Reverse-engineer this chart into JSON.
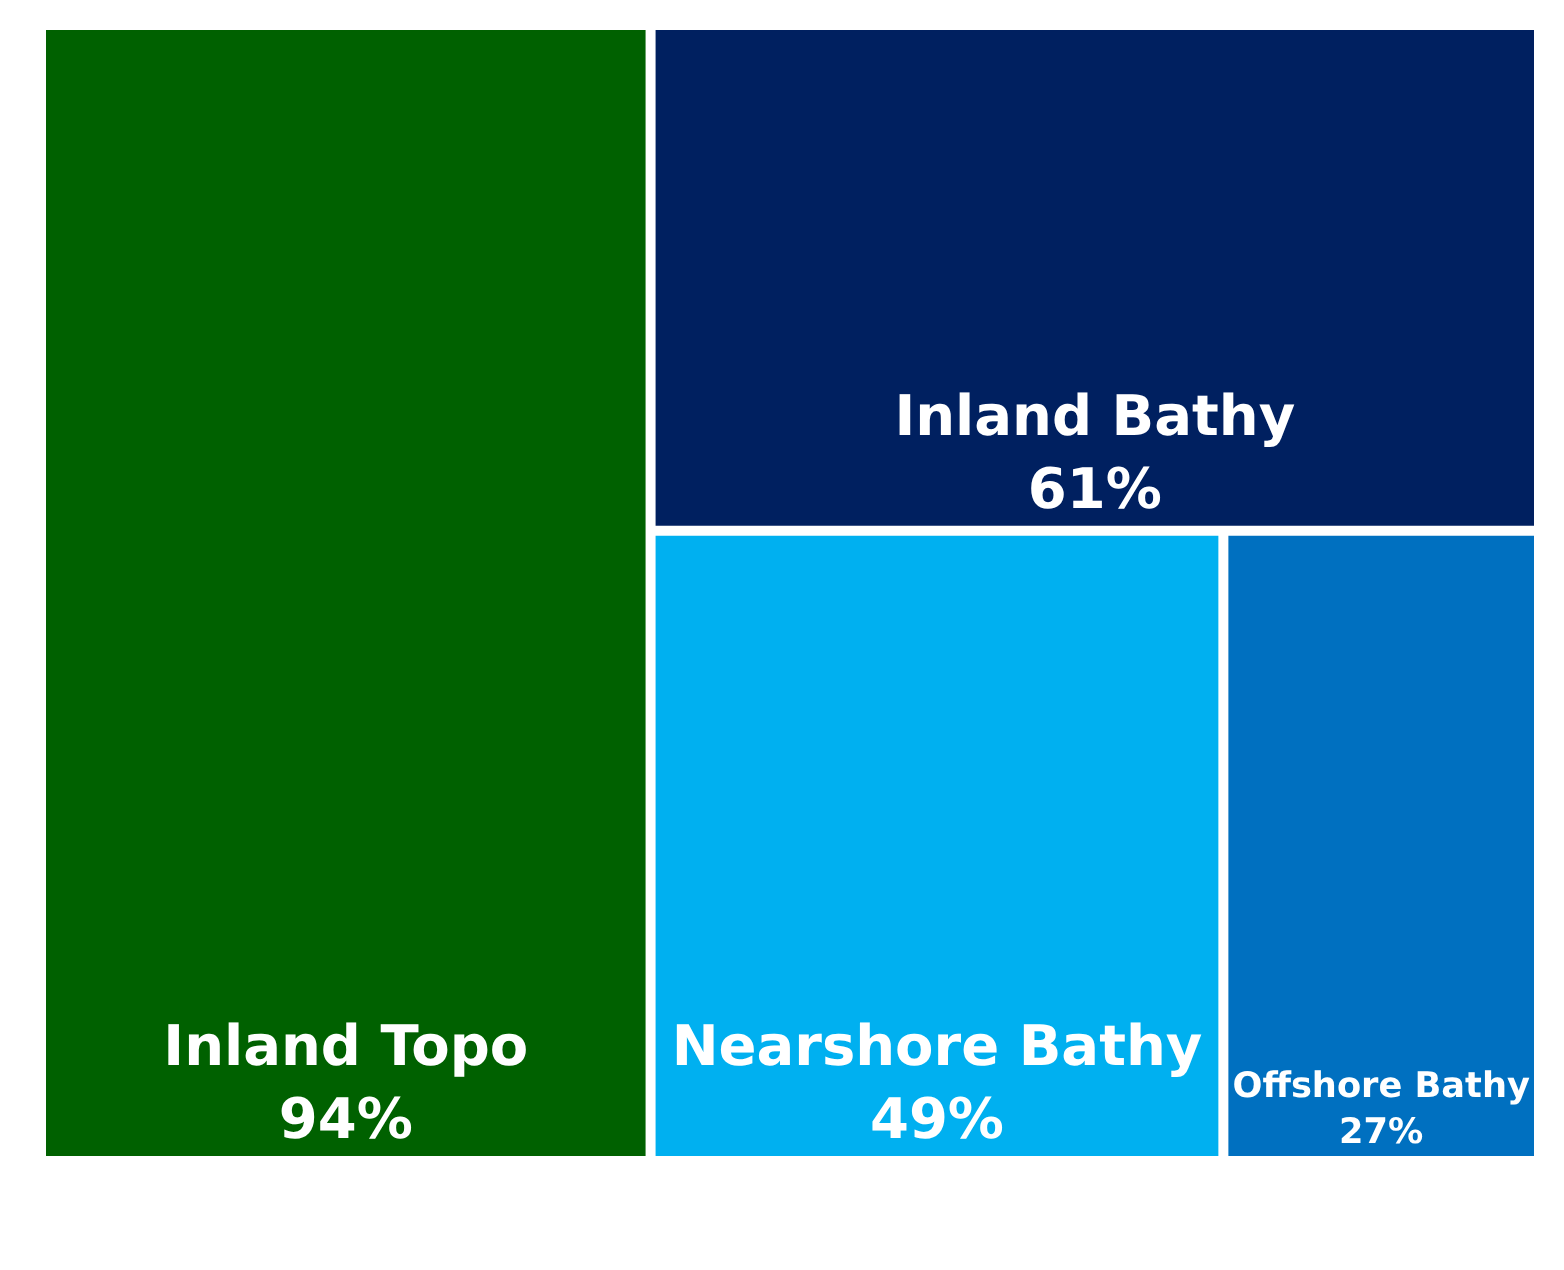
{
  "chart_data": {
    "type": "other",
    "categories": [
      "Inland Topo",
      "Inland Bathy",
      "Nearshore Bathy",
      "Offshore Bathy"
    ],
    "values": [
      94,
      61,
      49,
      27
    ],
    "value_labels": [
      "94%",
      "61%",
      "49%",
      "27%"
    ],
    "colors": [
      "#006100",
      "#002060",
      "#00b0f0",
      "#0070c0"
    ]
  }
}
